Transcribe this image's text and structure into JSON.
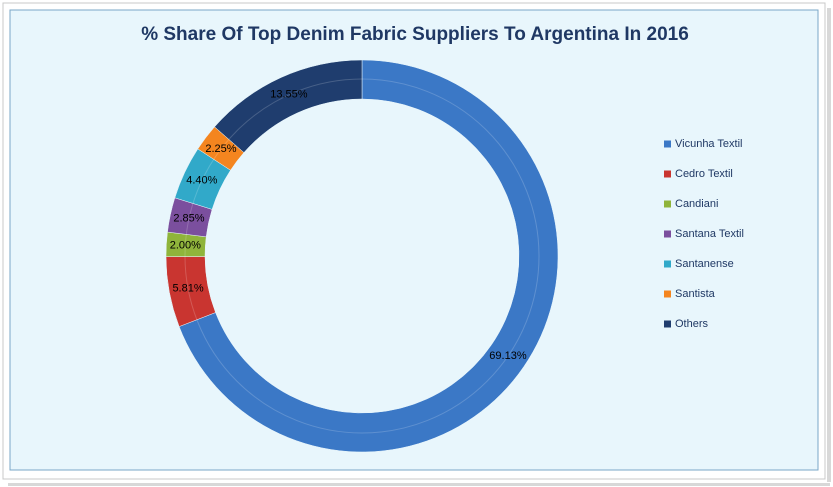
{
  "chart_data": {
    "type": "donut",
    "title": "% Share Of Top Denim Fabric Suppliers To Argentina In 2016",
    "categories": [
      "Vicunha Textil",
      "Cedro Textil",
      "Candiani",
      "Santana Textil",
      "Santanense",
      "Santista",
      "Others"
    ],
    "values": [
      69.13,
      5.81,
      2.0,
      2.85,
      4.4,
      2.25,
      13.55
    ],
    "value_labels": [
      "69.13%",
      "5.81%",
      "2.00%",
      "2.85%",
      "4.40%",
      "2.25%",
      "13.55%"
    ],
    "colors": [
      "#3b78c6",
      "#c93530",
      "#8fb43b",
      "#7b4f9e",
      "#31a9c9",
      "#f4851f",
      "#1f3d6e"
    ],
    "legend": "right"
  }
}
